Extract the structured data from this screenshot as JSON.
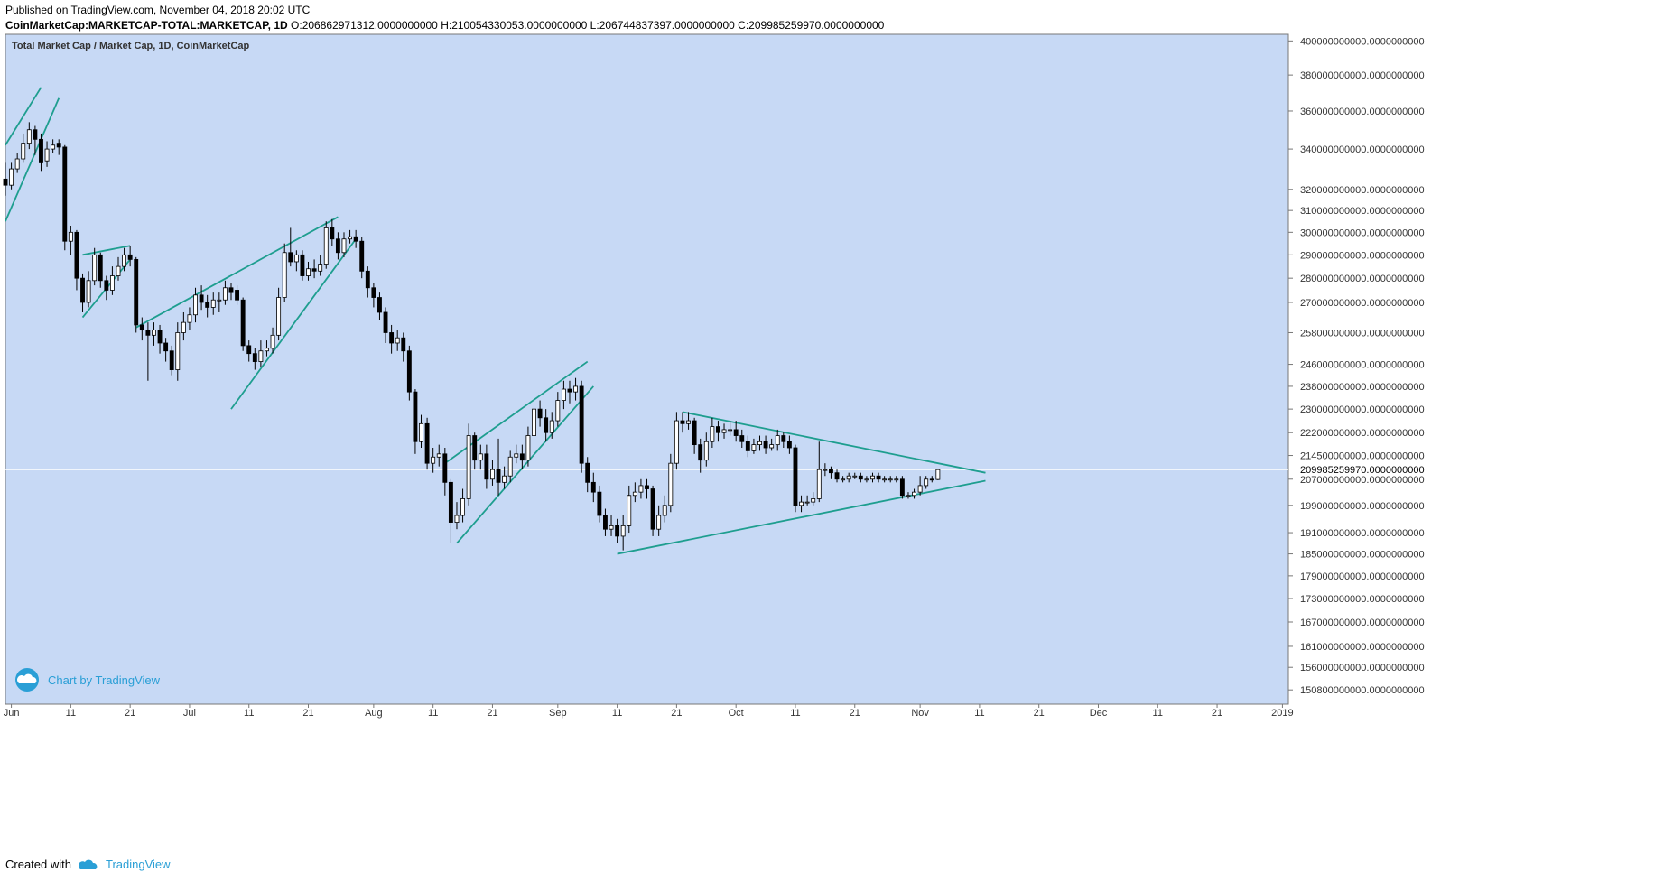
{
  "header": {
    "published": "Published on TradingView.com, November 04, 2018 20:02 UTC",
    "symbol": "CoinMarketCap:MARKETCAP-TOTAL:MARKETCAP, 1D",
    "ohlc": "O:206862971312.0000000000 H:210054330053.0000000000 L:206744837397.0000000000 C:209985259970.0000000000"
  },
  "chart_title": "Total Market Cap / Market Cap, 1D, CoinMarketCap",
  "watermark": "Chart by TradingView",
  "footer": {
    "created_with": "Created with",
    "brand": "TradingView"
  },
  "colors": {
    "background": "#c7d9f5",
    "trendline": "#1e9e8f",
    "bull": "#ffffff",
    "bear": "#000000"
  },
  "chart_data": {
    "type": "candlestick",
    "x_ticks": [
      "Jun",
      "11",
      "21",
      "Jul",
      "11",
      "21",
      "Aug",
      "11",
      "21",
      "Sep",
      "11",
      "21",
      "Oct",
      "11",
      "21",
      "Nov",
      "11",
      "21",
      "Dec",
      "11",
      "21",
      "2019"
    ],
    "y_ticks": [
      "400000000000.0000000000",
      "380000000000.0000000000",
      "360000000000.0000000000",
      "340000000000.0000000000",
      "320000000000.0000000000",
      "310000000000.0000000000",
      "300000000000.0000000000",
      "290000000000.0000000000",
      "280000000000.0000000000",
      "270000000000.0000000000",
      "258000000000.0000000000",
      "246000000000.0000000000",
      "238000000000.0000000000",
      "230000000000.0000000000",
      "222000000000.0000000000",
      "214500000000.0000000000",
      "207000000000.0000000000",
      "199000000000.0000000000",
      "191000000000.0000000000",
      "185000000000.0000000000",
      "179000000000.0000000000",
      "173000000000.0000000000",
      "167000000000.0000000000",
      "161000000000.0000000000",
      "156000000000.0000000000",
      "150800000000.0000000000"
    ],
    "last_price_label": "209985259970.0000000000",
    "last_price": 209985259970,
    "y_scale": "log",
    "x_range": [
      "2018-05-31",
      "2019-01-02"
    ],
    "y_range": [
      147600000000,
      404000000000
    ],
    "candles": [
      [
        "2018-05-31",
        325,
        322,
        333,
        317
      ],
      [
        "2018-06-01",
        322,
        330,
        333,
        320
      ],
      [
        "2018-06-02",
        330,
        335,
        338,
        328
      ],
      [
        "2018-06-03",
        335,
        343,
        348,
        333
      ],
      [
        "2018-06-04",
        343,
        350,
        354,
        340
      ],
      [
        "2018-06-05",
        350,
        345,
        352,
        337
      ],
      [
        "2018-06-06",
        345,
        333,
        348,
        329
      ],
      [
        "2018-06-07",
        334,
        340,
        344,
        331
      ],
      [
        "2018-06-08",
        340,
        342,
        345,
        338
      ],
      [
        "2018-06-09",
        343,
        341,
        345,
        337
      ],
      [
        "2018-06-10",
        341,
        296,
        342,
        292
      ],
      [
        "2018-06-11",
        296,
        300,
        303,
        290
      ],
      [
        "2018-06-12",
        300,
        280,
        301,
        275
      ],
      [
        "2018-06-13",
        280,
        270,
        282,
        266
      ],
      [
        "2018-06-14",
        270,
        279,
        283,
        268
      ],
      [
        "2018-06-15",
        279,
        290,
        293,
        277
      ],
      [
        "2018-06-16",
        290,
        279,
        291,
        276
      ],
      [
        "2018-06-17",
        279,
        275,
        281,
        271
      ],
      [
        "2018-06-18",
        275,
        281,
        285,
        273
      ],
      [
        "2018-06-19",
        281,
        285,
        289,
        279
      ],
      [
        "2018-06-20",
        285,
        290,
        293,
        283
      ],
      [
        "2018-06-21",
        290,
        288,
        294,
        285
      ],
      [
        "2018-06-22",
        288,
        261,
        289,
        258
      ],
      [
        "2018-06-23",
        261,
        259,
        264,
        255
      ],
      [
        "2018-06-24",
        259,
        257,
        262,
        240
      ],
      [
        "2018-06-25",
        257,
        259,
        262,
        253
      ],
      [
        "2018-06-26",
        259,
        254,
        261,
        250
      ],
      [
        "2018-06-27",
        254,
        251,
        256,
        247
      ],
      [
        "2018-06-28",
        251,
        244,
        253,
        242
      ],
      [
        "2018-06-29",
        244,
        258,
        262,
        240
      ],
      [
        "2018-06-30",
        258,
        262,
        266,
        255
      ],
      [
        "2018-07-01",
        262,
        265,
        268,
        259
      ],
      [
        "2018-07-02",
        265,
        273,
        276,
        262
      ],
      [
        "2018-07-03",
        273,
        270,
        277,
        267
      ],
      [
        "2018-07-04",
        270,
        268,
        273,
        264
      ],
      [
        "2018-07-05",
        268,
        271,
        274,
        265
      ],
      [
        "2018-07-06",
        271,
        271,
        274,
        266
      ],
      [
        "2018-07-07",
        271,
        276,
        279,
        269
      ],
      [
        "2018-07-08",
        276,
        274,
        278,
        271
      ],
      [
        "2018-07-09",
        275,
        271,
        277,
        269
      ],
      [
        "2018-07-10",
        271,
        253,
        272,
        251
      ],
      [
        "2018-07-11",
        253,
        250,
        255,
        247
      ],
      [
        "2018-07-12",
        250,
        247,
        252,
        244
      ],
      [
        "2018-07-13",
        247,
        251,
        255,
        245
      ],
      [
        "2018-07-14",
        251,
        252,
        255,
        249
      ],
      [
        "2018-07-15",
        252,
        257,
        260,
        250
      ],
      [
        "2018-07-16",
        257,
        272,
        276,
        255
      ],
      [
        "2018-07-17",
        272,
        291,
        295,
        270
      ],
      [
        "2018-07-18",
        291,
        287,
        302,
        285
      ],
      [
        "2018-07-19",
        287,
        290,
        292,
        283
      ],
      [
        "2018-07-20",
        290,
        281,
        292,
        279
      ],
      [
        "2018-07-21",
        281,
        284,
        287,
        279
      ],
      [
        "2018-07-22",
        284,
        283,
        288,
        280
      ],
      [
        "2018-07-23",
        283,
        286,
        290,
        281
      ],
      [
        "2018-07-24",
        286,
        302,
        305,
        284
      ],
      [
        "2018-07-25",
        302,
        297,
        306,
        294
      ],
      [
        "2018-07-26",
        297,
        291,
        300,
        288
      ],
      [
        "2018-07-27",
        291,
        297,
        300,
        289
      ],
      [
        "2018-07-28",
        297,
        298,
        301,
        295
      ],
      [
        "2018-07-29",
        298,
        296,
        301,
        293
      ],
      [
        "2018-07-30",
        296,
        283,
        298,
        280
      ],
      [
        "2018-07-31",
        283,
        276,
        285,
        272
      ],
      [
        "2018-08-01",
        276,
        272,
        278,
        268
      ],
      [
        "2018-08-02",
        272,
        266,
        274,
        263
      ],
      [
        "2018-08-03",
        266,
        258,
        268,
        254
      ],
      [
        "2018-08-04",
        258,
        254,
        261,
        250
      ],
      [
        "2018-08-05",
        254,
        256,
        259,
        251
      ],
      [
        "2018-08-06",
        256,
        251,
        258,
        247
      ],
      [
        "2018-08-07",
        251,
        236,
        253,
        233
      ],
      [
        "2018-08-08",
        236,
        219,
        237,
        215
      ],
      [
        "2018-08-09",
        219,
        225,
        228,
        217
      ],
      [
        "2018-08-10",
        225,
        212,
        227,
        210
      ],
      [
        "2018-08-11",
        212,
        214,
        217,
        209
      ],
      [
        "2018-08-12",
        214,
        215,
        218,
        211
      ],
      [
        "2018-08-13",
        215,
        206,
        217,
        202
      ],
      [
        "2018-08-14",
        206,
        194,
        207,
        188
      ],
      [
        "2018-08-15",
        194,
        196,
        200,
        192
      ],
      [
        "2018-08-16",
        196,
        201,
        204,
        194
      ],
      [
        "2018-08-17",
        201,
        221,
        225,
        199
      ],
      [
        "2018-08-18",
        221,
        213,
        222,
        210
      ],
      [
        "2018-08-19",
        213,
        215,
        218,
        210
      ],
      [
        "2018-08-20",
        215,
        207,
        218,
        204
      ],
      [
        "2018-08-21",
        207,
        210,
        213,
        205
      ],
      [
        "2018-08-22",
        210,
        206,
        220,
        202
      ],
      [
        "2018-08-23",
        206,
        208,
        211,
        204
      ],
      [
        "2018-08-24",
        208,
        214,
        216,
        206
      ],
      [
        "2018-08-25",
        214,
        215,
        218,
        212
      ],
      [
        "2018-08-26",
        215,
        213,
        218,
        210
      ],
      [
        "2018-08-27",
        213,
        221,
        224,
        211
      ],
      [
        "2018-08-28",
        221,
        230,
        233,
        219
      ],
      [
        "2018-08-29",
        230,
        227,
        233,
        224
      ],
      [
        "2018-08-30",
        227,
        222,
        230,
        219
      ],
      [
        "2018-08-31",
        222,
        226,
        229,
        220
      ],
      [
        "2018-09-01",
        226,
        233,
        236,
        224
      ],
      [
        "2018-09-02",
        233,
        237,
        240,
        230
      ],
      [
        "2018-09-03",
        237,
        236,
        240,
        232
      ],
      [
        "2018-09-04",
        236,
        238,
        241,
        233
      ],
      [
        "2018-09-05",
        238,
        212,
        240,
        209
      ],
      [
        "2018-09-06",
        212,
        206,
        214,
        203
      ],
      [
        "2018-09-07",
        206,
        203,
        209,
        200
      ],
      [
        "2018-09-08",
        203,
        196,
        205,
        194
      ],
      [
        "2018-09-09",
        196,
        192,
        198,
        190
      ],
      [
        "2018-09-10",
        192,
        193,
        196,
        190
      ],
      [
        "2018-09-11",
        193,
        190,
        195,
        188
      ],
      [
        "2018-09-12",
        190,
        193,
        196,
        186
      ],
      [
        "2018-09-13",
        193,
        202,
        205,
        191
      ],
      [
        "2018-09-14",
        202,
        203,
        206,
        200
      ],
      [
        "2018-09-15",
        203,
        205,
        207,
        201
      ],
      [
        "2018-09-16",
        205,
        204,
        207,
        201
      ],
      [
        "2018-09-17",
        204,
        192,
        205,
        190
      ],
      [
        "2018-09-18",
        192,
        196,
        199,
        190
      ],
      [
        "2018-09-19",
        196,
        199,
        202,
        194
      ],
      [
        "2018-09-20",
        199,
        212,
        215,
        197
      ],
      [
        "2018-09-21",
        212,
        226,
        229,
        210
      ],
      [
        "2018-09-22",
        226,
        225,
        229,
        222
      ],
      [
        "2018-09-23",
        225,
        226,
        229,
        223
      ],
      [
        "2018-09-24",
        226,
        218,
        227,
        215
      ],
      [
        "2018-09-25",
        218,
        213,
        220,
        209
      ],
      [
        "2018-09-26",
        213,
        219,
        222,
        211
      ],
      [
        "2018-09-27",
        219,
        224,
        227,
        217
      ],
      [
        "2018-09-28",
        224,
        222,
        226,
        219
      ],
      [
        "2018-09-29",
        222,
        223,
        225,
        220
      ],
      [
        "2018-09-30",
        223,
        223,
        226,
        221
      ],
      [
        "2018-10-01",
        223,
        221,
        226,
        219
      ],
      [
        "2018-10-02",
        221,
        219,
        223,
        217
      ],
      [
        "2018-10-03",
        219,
        216,
        221,
        214
      ],
      [
        "2018-10-04",
        216,
        218,
        220,
        215
      ],
      [
        "2018-10-05",
        218,
        219,
        221,
        216
      ],
      [
        "2018-10-06",
        219,
        217,
        221,
        215
      ],
      [
        "2018-10-07",
        217,
        218,
        220,
        216
      ],
      [
        "2018-10-08",
        218,
        221,
        223,
        216
      ],
      [
        "2018-10-09",
        221,
        219,
        222,
        217
      ],
      [
        "2018-10-10",
        219,
        217,
        221,
        215
      ],
      [
        "2018-10-11",
        217,
        199,
        218,
        197
      ],
      [
        "2018-10-12",
        199,
        200,
        202,
        197
      ],
      [
        "2018-10-13",
        200,
        200,
        202,
        199
      ],
      [
        "2018-10-14",
        200,
        201,
        203,
        199
      ],
      [
        "2018-10-15",
        201,
        210,
        219,
        200
      ],
      [
        "2018-10-16",
        210,
        210,
        212,
        208
      ],
      [
        "2018-10-17",
        210,
        209,
        211,
        207
      ],
      [
        "2018-10-18",
        209,
        207,
        210,
        206
      ],
      [
        "2018-10-19",
        207,
        207,
        208,
        206
      ],
      [
        "2018-10-20",
        207,
        208,
        209,
        206
      ],
      [
        "2018-10-21",
        208,
        208,
        209,
        207
      ],
      [
        "2018-10-22",
        208,
        207,
        209,
        206
      ],
      [
        "2018-10-23",
        207,
        207,
        208,
        206
      ],
      [
        "2018-10-24",
        207,
        208,
        209,
        206
      ],
      [
        "2018-10-25",
        208,
        207,
        209,
        206
      ],
      [
        "2018-10-26",
        207,
        207,
        208,
        206
      ],
      [
        "2018-10-27",
        207,
        207,
        208,
        206
      ],
      [
        "2018-10-28",
        207,
        207,
        208,
        206
      ],
      [
        "2018-10-29",
        207,
        202,
        208,
        201
      ],
      [
        "2018-10-30",
        202,
        202,
        203,
        201
      ],
      [
        "2018-10-31",
        202,
        203,
        204,
        201
      ],
      [
        "2018-11-01",
        203,
        205,
        208,
        202
      ],
      [
        "2018-11-02",
        205,
        207,
        208,
        204
      ],
      [
        "2018-11-03",
        207,
        206.9,
        208,
        206
      ],
      [
        "2018-11-04",
        206.9,
        210,
        210.1,
        206.7
      ]
    ],
    "candles_format": [
      "date",
      "open",
      "close",
      "high",
      "low"
    ],
    "candles_unit": "billion USD",
    "trendlines": [
      [
        [
          "2018-05-31",
          342
        ],
        [
          "2018-06-06",
          373
        ]
      ],
      [
        [
          "2018-05-31",
          305
        ],
        [
          "2018-06-09",
          367
        ]
      ],
      [
        [
          "2018-06-13",
          290
        ],
        [
          "2018-06-21",
          294
        ]
      ],
      [
        [
          "2018-06-13",
          264
        ],
        [
          "2018-06-21",
          288
        ]
      ],
      [
        [
          "2018-06-22",
          260
        ],
        [
          "2018-07-26",
          307
        ]
      ],
      [
        [
          "2018-07-08",
          230
        ],
        [
          "2018-07-29",
          297
        ]
      ],
      [
        [
          "2018-08-13",
          212
        ],
        [
          "2018-09-06",
          247
        ]
      ],
      [
        [
          "2018-08-15",
          188
        ],
        [
          "2018-09-07",
          238
        ]
      ],
      [
        [
          "2018-09-11",
          185
        ],
        [
          "2018-11-12",
          206.5
        ]
      ],
      [
        [
          "2018-09-22",
          229
        ],
        [
          "2018-11-12",
          209
        ]
      ]
    ]
  }
}
